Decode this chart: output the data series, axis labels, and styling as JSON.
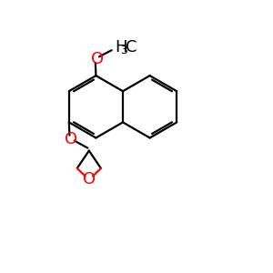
{
  "bg_color": "#ffffff",
  "bond_color": "#000000",
  "oxygen_color": "#ff0000",
  "bond_lw": 1.6,
  "font_size": 13,
  "sub_font_size": 9,
  "figsize": [
    3.0,
    3.0
  ],
  "dpi": 100,
  "xlim": [
    0,
    10
  ],
  "ylim": [
    0,
    10
  ]
}
